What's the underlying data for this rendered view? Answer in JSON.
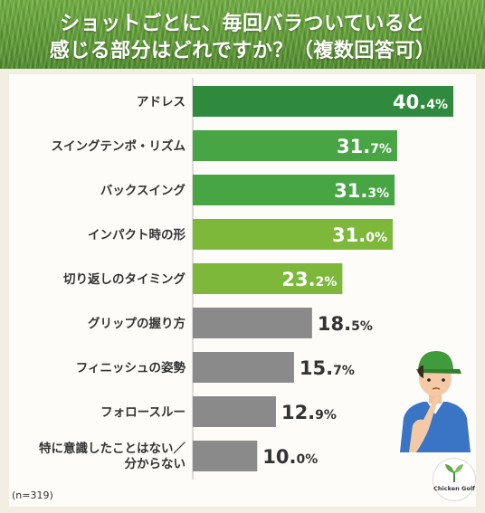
{
  "title_line1": "ショットごとに、毎回バラついていると",
  "title_line2": "感じる部分はどれですか？（複数回答可）",
  "note": "(n=319)",
  "logo_text": "Chicken Golf",
  "colors": {
    "dark_green": "#2f8a3e",
    "mid_green": "#47a543",
    "light_green": "#7db83a",
    "gray": "#8a8a8a"
  },
  "chart_data": {
    "type": "bar",
    "orientation": "horizontal",
    "categories": [
      "アドレス",
      "スイングテンポ・リズム",
      "バックスイング",
      "インパクト時の形",
      "切り返しのタイミング",
      "グリップの握り方",
      "フィニッシュの姿勢",
      "フォロースルー",
      "特に意識したことはない／分からない"
    ],
    "values": [
      40.4,
      31.7,
      31.3,
      31.0,
      23.2,
      18.5,
      15.7,
      12.9,
      10.0
    ],
    "unit": "%",
    "bar_colors": [
      "#2f8a3e",
      "#47a543",
      "#47a543",
      "#7db83a",
      "#7db83a",
      "#8a8a8a",
      "#8a8a8a",
      "#8a8a8a",
      "#8a8a8a"
    ],
    "xlim": [
      0,
      40.4
    ]
  }
}
